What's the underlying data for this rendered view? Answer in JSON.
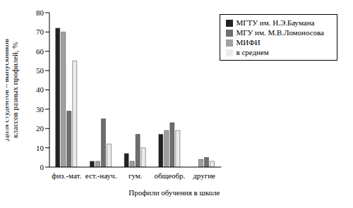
{
  "chart_data": {
    "type": "bar",
    "x_label": "Профили обучения в школе",
    "y_label": "Доля студентов – выпускников классов разных профилей, %",
    "categories": [
      "физ.-мат.",
      "ест.-науч.",
      "гум.",
      "общеобр.",
      "другие"
    ],
    "series": [
      {
        "name": "МГТУ им. Н.Э.Баумана",
        "color": "#222222",
        "values": [
          72,
          3,
          7,
          17,
          0
        ]
      },
      {
        "name": "МИФИ",
        "color": "#a0a0a0",
        "values": [
          70,
          3,
          3,
          19,
          4
        ]
      },
      {
        "name": "МГУ им. М.В.Ломоносова",
        "color": "#6e6e6e",
        "values": [
          29,
          25,
          17,
          23,
          5
        ]
      },
      {
        "name": "в среднем",
        "color": "#ececec",
        "values": [
          55,
          12,
          10,
          19,
          3
        ]
      }
    ],
    "ylim": [
      0,
      80
    ],
    "yticks": [
      0,
      10,
      20,
      30,
      40,
      50,
      60,
      70,
      80
    ],
    "grid": false,
    "legend": "upper right"
  }
}
